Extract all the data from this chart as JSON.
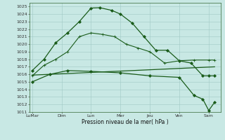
{
  "background_color": "#c8e8e4",
  "grid_color": "#a0c8c4",
  "line_color": "#1a5c1a",
  "x_labels": [
    "LuMar",
    "Dim",
    "Lun",
    "Mer",
    "Jeu",
    "Ven",
    "Sam"
  ],
  "x_ticks": [
    0,
    1,
    2,
    3,
    4,
    5,
    6
  ],
  "ylabel": "Pression niveau de la mer( hPa )",
  "ylim": [
    1011,
    1025.5
  ],
  "yticks": [
    1011,
    1012,
    1013,
    1014,
    1015,
    1016,
    1017,
    1018,
    1019,
    1020,
    1021,
    1022,
    1023,
    1024,
    1025
  ],
  "xlim": [
    -0.1,
    6.4
  ],
  "series": [
    {
      "x": [
        0.0,
        0.4,
        0.8,
        1.2,
        1.6,
        2.0,
        2.3,
        2.7,
        3.0,
        3.4,
        3.8,
        4.2,
        4.6,
        5.0,
        5.4,
        5.8,
        6.0,
        6.2
      ],
      "y": [
        1016.5,
        1018.0,
        1020.2,
        1021.5,
        1023.0,
        1024.8,
        1024.85,
        1024.5,
        1024.0,
        1022.8,
        1021.0,
        1019.2,
        1019.2,
        1017.8,
        1017.5,
        1015.8,
        1015.8,
        1015.8
      ],
      "marker": "D",
      "markersize": 2.0,
      "linewidth": 0.9
    },
    {
      "x": [
        0.0,
        0.4,
        0.8,
        1.2,
        1.6,
        2.0,
        2.4,
        2.8,
        3.2,
        3.6,
        4.0,
        4.5,
        5.0,
        5.5,
        6.0,
        6.2
      ],
      "y": [
        1015.8,
        1017.2,
        1018.0,
        1019.0,
        1021.0,
        1021.5,
        1021.3,
        1021.0,
        1020.0,
        1019.5,
        1019.0,
        1017.5,
        1017.8,
        1017.9,
        1017.9,
        1017.9
      ],
      "marker": "+",
      "markersize": 3.5,
      "linewidth": 0.8
    },
    {
      "x": [
        0.0,
        6.2
      ],
      "y": [
        1015.9,
        1017.0
      ],
      "marker": null,
      "markersize": 0,
      "linewidth": 0.9
    },
    {
      "x": [
        0.0,
        0.6,
        1.2,
        2.0,
        3.0,
        4.0,
        5.0,
        5.5,
        5.8,
        6.0,
        6.2
      ],
      "y": [
        1015.0,
        1016.0,
        1016.5,
        1016.4,
        1016.2,
        1015.8,
        1015.6,
        1013.2,
        1012.7,
        1011.2,
        1012.3
      ],
      "marker": "D",
      "markersize": 2.0,
      "linewidth": 0.9
    }
  ]
}
